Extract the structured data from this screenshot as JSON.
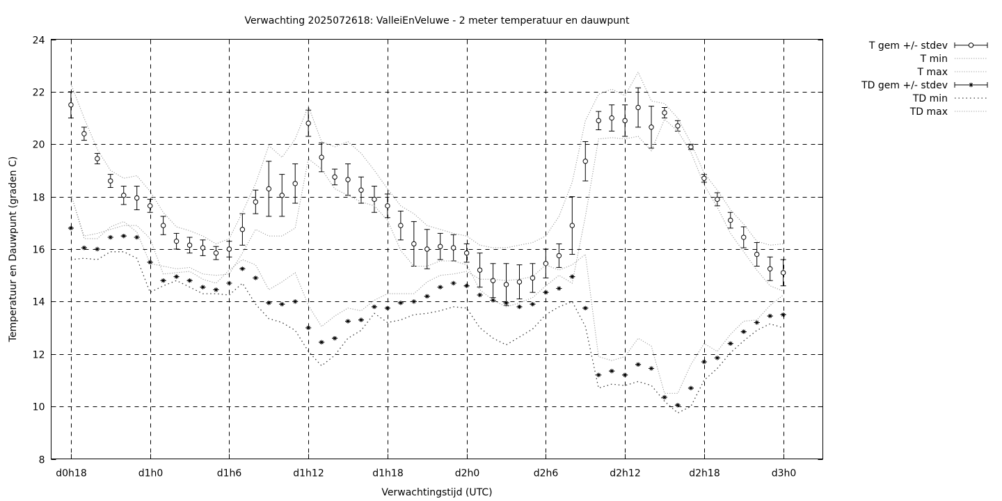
{
  "chart_data": {
    "type": "line",
    "title": "Verwachting 2025072618: ValleiEnVeluwe - 2 meter temperatuur en dauwpunt",
    "xlabel": "Verwachtingstijd (UTC)",
    "ylabel": "Temperatuur en Dauwpunt (graden C)",
    "xlim": [
      -1.5,
      57
    ],
    "ylim": [
      8,
      24
    ],
    "y_ticks": [
      8,
      10,
      12,
      14,
      16,
      18,
      20,
      22,
      24
    ],
    "x_ticks": [
      {
        "x": 0,
        "label": "d0h18"
      },
      {
        "x": 6,
        "label": "d1h0"
      },
      {
        "x": 12,
        "label": "d1h6"
      },
      {
        "x": 18,
        "label": "d1h12"
      },
      {
        "x": 24,
        "label": "d1h18"
      },
      {
        "x": 30,
        "label": "d2h0"
      },
      {
        "x": 36,
        "label": "d2h6"
      },
      {
        "x": 42,
        "label": "d2h12"
      },
      {
        "x": 48,
        "label": "d2h18"
      },
      {
        "x": 54,
        "label": "d3h0"
      }
    ],
    "grid": true,
    "legend_position": "outside-right",
    "x_hours": [
      0,
      1,
      2,
      3,
      4,
      5,
      6,
      7,
      8,
      9,
      10,
      11,
      12,
      13,
      14,
      15,
      16,
      17,
      18,
      19,
      20,
      21,
      22,
      23,
      24,
      25,
      26,
      27,
      28,
      29,
      30,
      31,
      32,
      33,
      34,
      35,
      36,
      37,
      38,
      39,
      40,
      41,
      42,
      43,
      44,
      45,
      46,
      47,
      48,
      49,
      50,
      51,
      52,
      53,
      54
    ],
    "series": [
      {
        "name": "T gem +/- stdev",
        "style": "points-errorbars",
        "marker": "circle",
        "values": [
          21.5,
          20.4,
          19.45,
          18.6,
          18.05,
          17.95,
          17.65,
          16.9,
          16.3,
          16.15,
          16.05,
          15.85,
          16.0,
          16.75,
          17.8,
          18.3,
          18.05,
          18.5,
          20.8,
          19.5,
          18.75,
          18.65,
          18.25,
          17.9,
          17.65,
          16.9,
          16.2,
          16.0,
          16.1,
          16.05,
          15.85,
          15.2,
          14.8,
          14.65,
          14.75,
          14.9,
          15.45,
          15.75,
          16.9,
          19.35,
          20.9,
          21.0,
          20.9,
          21.4,
          20.65,
          21.2,
          20.7,
          19.9,
          18.7,
          17.9,
          17.1,
          16.45,
          15.8,
          15.25,
          15.1
        ],
        "stdev": [
          0.5,
          0.25,
          0.2,
          0.25,
          0.35,
          0.45,
          0.25,
          0.35,
          0.3,
          0.3,
          0.3,
          0.25,
          0.3,
          0.6,
          0.45,
          1.05,
          0.8,
          0.75,
          0.5,
          0.55,
          0.3,
          0.6,
          0.5,
          0.5,
          0.45,
          0.55,
          0.85,
          0.75,
          0.5,
          0.5,
          0.35,
          0.65,
          0.65,
          0.8,
          0.65,
          0.55,
          0.55,
          0.45,
          1.1,
          0.75,
          0.35,
          0.5,
          0.6,
          0.75,
          0.8,
          0.2,
          0.2,
          0.1,
          0.15,
          0.25,
          0.3,
          0.4,
          0.45,
          0.45,
          0.5
        ]
      },
      {
        "name": "T min",
        "style": "dotted-line",
        "values": [
          18.1,
          16.4,
          16.4,
          16.85,
          17.05,
          16.65,
          15.45,
          15.35,
          15.25,
          15.3,
          15.05,
          15.0,
          15.05,
          15.85,
          16.75,
          16.5,
          16.5,
          16.8,
          19.45,
          19.05,
          18.3,
          18.05,
          17.8,
          17.65,
          17.1,
          15.95,
          15.35,
          15.35,
          15.55,
          15.55,
          15.4,
          14.45,
          14.05,
          13.8,
          13.95,
          14.15,
          14.6,
          15.0,
          14.7,
          17.25,
          20.2,
          20.25,
          20.2,
          20.3,
          19.75,
          20.95,
          20.5,
          19.7,
          18.45,
          17.6,
          16.6,
          15.9,
          15.2,
          14.6,
          14.4
        ]
      },
      {
        "name": "T max",
        "style": "dotted-line",
        "values": [
          22.3,
          21.0,
          19.8,
          19.0,
          18.7,
          18.8,
          18.2,
          17.4,
          16.85,
          16.7,
          16.5,
          16.2,
          16.4,
          17.4,
          18.5,
          19.95,
          19.5,
          20.2,
          21.45,
          20.1,
          19.9,
          20.1,
          19.65,
          19.0,
          18.3,
          17.65,
          17.35,
          16.9,
          16.75,
          16.6,
          16.5,
          16.15,
          16.05,
          16.05,
          16.15,
          16.25,
          16.5,
          17.25,
          18.55,
          20.9,
          21.9,
          22.1,
          21.85,
          22.75,
          21.65,
          21.55,
          21.0,
          20.05,
          18.9,
          18.25,
          17.5,
          16.95,
          16.3,
          16.15,
          16.2
        ]
      },
      {
        "name": "TD gem +/- stdev",
        "style": "points-errorbars",
        "marker": "star",
        "values": [
          16.8,
          16.05,
          16.0,
          16.45,
          16.5,
          16.45,
          15.5,
          14.8,
          14.95,
          14.8,
          14.55,
          14.45,
          14.7,
          15.25,
          14.9,
          13.95,
          13.9,
          14.0,
          13.0,
          12.45,
          12.6,
          13.25,
          13.3,
          13.8,
          13.75,
          13.95,
          14.0,
          14.2,
          14.55,
          14.7,
          14.6,
          14.25,
          14.05,
          13.95,
          13.8,
          13.9,
          14.35,
          14.5,
          14.95,
          13.75,
          11.2,
          11.35,
          11.2,
          11.6,
          11.45,
          10.35,
          10.05,
          10.7,
          11.7,
          11.85,
          12.4,
          12.85,
          13.2,
          13.45,
          13.5
        ]
      },
      {
        "name": "TD min",
        "style": "dotted-line",
        "values": [
          15.6,
          15.65,
          15.6,
          15.9,
          15.9,
          15.65,
          14.35,
          14.6,
          14.8,
          14.55,
          14.3,
          14.3,
          14.25,
          14.7,
          13.9,
          13.35,
          13.2,
          12.9,
          12.1,
          11.55,
          11.95,
          12.6,
          12.9,
          13.55,
          13.2,
          13.3,
          13.5,
          13.55,
          13.65,
          13.8,
          13.75,
          13.0,
          12.6,
          12.35,
          12.65,
          12.95,
          13.5,
          13.8,
          14.0,
          13.05,
          10.7,
          10.85,
          10.8,
          10.95,
          10.8,
          10.2,
          9.75,
          10.0,
          11.0,
          11.45,
          12.05,
          12.5,
          12.9,
          13.15,
          13.0
        ]
      },
      {
        "name": "TD max",
        "style": "dotted-line",
        "values": [
          18.1,
          16.5,
          16.6,
          16.75,
          16.9,
          16.9,
          16.4,
          15.05,
          15.1,
          15.15,
          14.85,
          14.7,
          15.2,
          15.6,
          15.4,
          14.45,
          14.75,
          15.1,
          13.85,
          13.05,
          13.45,
          13.75,
          13.65,
          14.05,
          14.3,
          14.3,
          14.3,
          14.75,
          15.0,
          15.05,
          15.15,
          14.85,
          14.85,
          14.8,
          14.85,
          14.95,
          15.4,
          15.2,
          15.4,
          15.8,
          11.9,
          11.75,
          11.9,
          12.6,
          12.3,
          10.5,
          10.5,
          11.6,
          12.4,
          12.1,
          12.75,
          13.25,
          13.3,
          13.85,
          14.25
        ]
      }
    ]
  }
}
